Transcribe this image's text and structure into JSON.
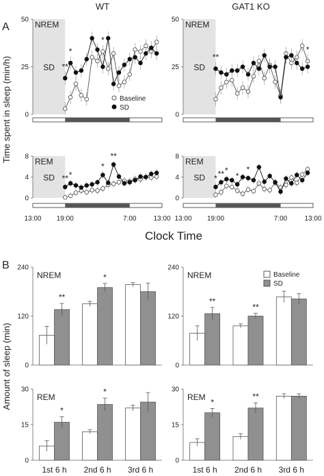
{
  "figure": {
    "panel_a_letter": "A",
    "panel_b_letter": "B",
    "col_titles": [
      "WT",
      "GAT1 KO"
    ],
    "a_ylabel": "Time spent in  sleep (min/h)",
    "a_xlabel": "Clock Time",
    "b_ylabel": "Amount of sleep (min)",
    "time_ticks": [
      "13:00",
      "19:00",
      "7:00",
      "13:00"
    ],
    "sd_label": "SD",
    "legend_a": [
      "Baseline",
      "SD"
    ],
    "legend_b": [
      "Baseline",
      "SD"
    ],
    "colors": {
      "baseline_fill": "#ffffff",
      "sd_fill": "#909090",
      "sd_shade": "#e3e3e3",
      "line": "#333333"
    }
  },
  "chart_data": [
    {
      "type": "line",
      "id": "a_wt_nrem",
      "stage": "NREM",
      "genotype": "WT",
      "ylim": [
        0,
        50
      ],
      "yticks": [
        0,
        25,
        50
      ],
      "hours": [
        19,
        20,
        21,
        22,
        23,
        24,
        25,
        26,
        27,
        28,
        29,
        30,
        31,
        32,
        33,
        34,
        35,
        36
      ],
      "series": [
        {
          "name": "Baseline",
          "values": [
            3,
            9,
            16,
            10,
            8,
            30,
            28,
            33,
            24,
            32,
            15,
            17,
            21,
            34,
            33,
            36,
            33,
            38
          ]
        },
        {
          "name": "SD",
          "values": [
            19,
            27,
            22,
            23,
            29,
            40,
            34,
            25,
            40,
            16,
            22,
            26,
            29,
            30,
            27,
            32,
            35,
            32
          ]
        }
      ],
      "sig_marks": [
        {
          "hour": 19,
          "text": "**"
        },
        {
          "hour": 20,
          "text": "*"
        },
        {
          "hour": 26,
          "text": "*"
        }
      ]
    },
    {
      "type": "line",
      "id": "a_ko_nrem",
      "stage": "NREM",
      "genotype": "GAT1 KO",
      "ylim": [
        0,
        50
      ],
      "yticks": [
        0,
        25,
        50
      ],
      "hours": [
        19,
        20,
        21,
        22,
        23,
        24,
        25,
        26,
        27,
        28,
        29,
        30,
        31,
        32,
        33,
        34,
        35,
        36
      ],
      "series": [
        {
          "name": "Baseline",
          "values": [
            8,
            14,
            17,
            18,
            11,
            14,
            12,
            20,
            28,
            19,
            26,
            17,
            10,
            32,
            27,
            30,
            36,
            28
          ]
        },
        {
          "name": "SD",
          "values": [
            24,
            22,
            21,
            23,
            23,
            25,
            21,
            27,
            24,
            31,
            25,
            25,
            9,
            30,
            31,
            27,
            24,
            25
          ]
        }
      ],
      "sig_marks": [
        {
          "hour": 19,
          "text": "**"
        },
        {
          "hour": 36,
          "text": "*"
        }
      ]
    },
    {
      "type": "line",
      "id": "a_wt_rem",
      "stage": "REM",
      "genotype": "WT",
      "ylim": [
        0,
        8
      ],
      "yticks": [
        0,
        4,
        8
      ],
      "hours": [
        19,
        20,
        21,
        22,
        23,
        24,
        25,
        26,
        27,
        28,
        29,
        30,
        31,
        32,
        33,
        34,
        35,
        36
      ],
      "series": [
        {
          "name": "Baseline",
          "values": [
            0.1,
            0.4,
            1.0,
            1.4,
            1.1,
            1.5,
            1.4,
            1.8,
            2.5,
            2.7,
            3.0,
            3.3,
            3.2,
            3.6,
            3.6,
            4.0,
            3.9,
            4.1
          ]
        },
        {
          "name": "SD",
          "values": [
            2.1,
            2.8,
            2.4,
            2.0,
            2.4,
            2.6,
            3.0,
            4.4,
            2.9,
            6.4,
            4.1,
            2.8,
            3.0,
            3.4,
            4.1,
            4.0,
            4.6,
            4.8
          ]
        }
      ],
      "sig_marks": [
        {
          "hour": 19,
          "text": "**"
        },
        {
          "hour": 20,
          "text": "*"
        },
        {
          "hour": 26,
          "text": "*"
        },
        {
          "hour": 28,
          "text": "**"
        }
      ]
    },
    {
      "type": "line",
      "id": "a_ko_rem",
      "stage": "REM",
      "genotype": "GAT1 KO",
      "ylim": [
        0,
        8
      ],
      "yticks": [
        0,
        4,
        8
      ],
      "hours": [
        19,
        20,
        21,
        22,
        23,
        24,
        25,
        26,
        27,
        28,
        29,
        30,
        31,
        32,
        33,
        34,
        35,
        36
      ],
      "series": [
        {
          "name": "Baseline",
          "values": [
            0.6,
            1.1,
            2.3,
            2.1,
            1.4,
            0.8,
            1.6,
            1.3,
            2.8,
            1.7,
            1.5,
            2.9,
            2.0,
            2.5,
            3.9,
            2.9,
            4.5,
            5.5
          ]
        },
        {
          "name": "SD",
          "values": [
            2.1,
            3.0,
            3.6,
            3.4,
            2.6,
            4.0,
            3.8,
            3.4,
            5.9,
            3.1,
            4.2,
            3.0,
            1.2,
            3.7,
            2.8,
            4.4,
            3.4,
            4.8
          ]
        }
      ],
      "sig_marks": [
        {
          "hour": 19,
          "text": "*"
        },
        {
          "hour": 20,
          "text": "**"
        },
        {
          "hour": 21,
          "text": "*"
        },
        {
          "hour": 23,
          "text": "*"
        },
        {
          "hour": 25,
          "text": "*"
        }
      ]
    },
    {
      "type": "bar",
      "id": "b_wt_nrem",
      "stage": "NREM",
      "genotype": "WT",
      "categories": [
        "1st 6 h",
        "2nd 6 h",
        "3rd 6 h"
      ],
      "ylim": [
        0,
        240
      ],
      "yticks": [
        0,
        120,
        240
      ],
      "series": [
        {
          "name": "Baseline",
          "values": [
            73,
            150,
            197
          ],
          "errors": [
            22,
            6,
            5
          ]
        },
        {
          "name": "SD",
          "values": [
            136,
            190,
            180
          ],
          "errors": [
            15,
            10,
            21
          ]
        }
      ],
      "sig_marks": [
        "**",
        "*",
        ""
      ]
    },
    {
      "type": "bar",
      "id": "b_ko_nrem",
      "stage": "NREM",
      "genotype": "GAT1 KO",
      "categories": [
        "1st 6 h",
        "2nd 6 h",
        "3rd 6 h"
      ],
      "ylim": [
        0,
        240
      ],
      "yticks": [
        0,
        120,
        240
      ],
      "series": [
        {
          "name": "Baseline",
          "values": [
            78,
            96,
            167
          ],
          "errors": [
            18,
            5,
            14
          ]
        },
        {
          "name": "SD",
          "values": [
            126,
            120,
            162
          ],
          "errors": [
            15,
            7,
            13
          ]
        }
      ],
      "sig_marks": [
        "**",
        "**",
        ""
      ]
    },
    {
      "type": "bar",
      "id": "b_wt_rem",
      "stage": "REM",
      "genotype": "WT",
      "categories": [
        "1st 6 h",
        "2nd 6 h",
        "3rd 6 h"
      ],
      "ylim": [
        0,
        30
      ],
      "yticks": [
        0,
        15,
        30
      ],
      "series": [
        {
          "name": "Baseline",
          "values": [
            6,
            12,
            22
          ],
          "errors": [
            2.2,
            0.8,
            1.2
          ]
        },
        {
          "name": "SD",
          "values": [
            16,
            23.5,
            24.5
          ],
          "errors": [
            2.3,
            2.7,
            4.0
          ]
        }
      ],
      "sig_marks": [
        "*",
        "*",
        ""
      ]
    },
    {
      "type": "bar",
      "id": "b_ko_rem",
      "stage": "REM",
      "genotype": "GAT1 KO",
      "categories": [
        "1st 6 h",
        "2nd 6 h",
        "3rd 6 h"
      ],
      "ylim": [
        0,
        30
      ],
      "yticks": [
        0,
        15,
        30
      ],
      "series": [
        {
          "name": "Baseline",
          "values": [
            7.5,
            10,
            27
          ],
          "errors": [
            1.5,
            1.2,
            1.0
          ]
        },
        {
          "name": "SD",
          "values": [
            20,
            22,
            27
          ],
          "errors": [
            1.8,
            2.2,
            1.0
          ]
        }
      ],
      "sig_marks": [
        "*",
        "**",
        ""
      ]
    }
  ]
}
